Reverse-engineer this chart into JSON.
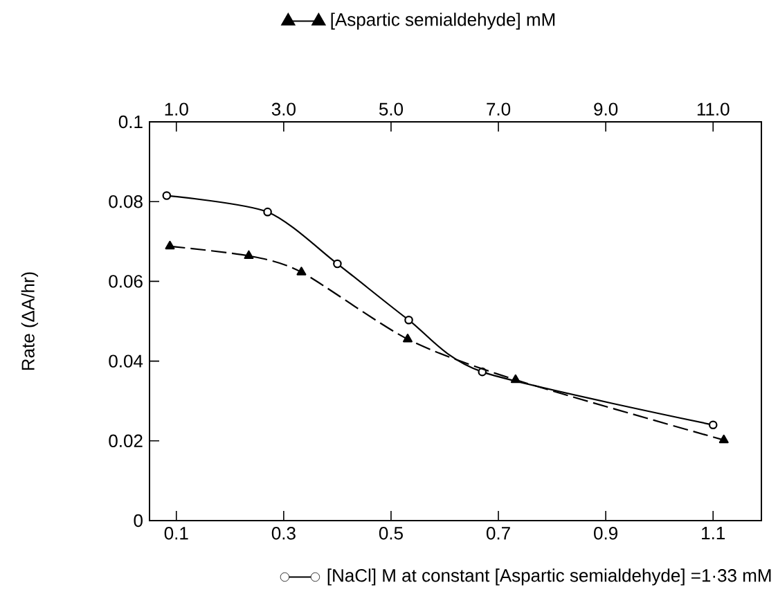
{
  "chart_data": {
    "type": "line",
    "xlabel": "[NaCl] M at constant [Aspartic semialdehyde] =1·33 mM",
    "x2label": "[Aspartic semialdehyde] mM",
    "ylabel": "Rate (ΔA/hr)",
    "xlim": [
      0.05,
      1.19
    ],
    "xticks": [
      0.1,
      0.3,
      0.5,
      0.7,
      0.9,
      1.1
    ],
    "x2lim": [
      0.5,
      11.9
    ],
    "x2ticks": [
      {
        "value": 1,
        "label": "1.0"
      },
      {
        "value": 3,
        "label": "3.0"
      },
      {
        "value": 5,
        "label": "5.0"
      },
      {
        "value": 7,
        "label": "7.0"
      },
      {
        "value": 9,
        "label": "9.0"
      },
      {
        "value": 11,
        "label": "11.0"
      }
    ],
    "ylim": [
      0,
      0.1
    ],
    "yticks": [
      0,
      0.02,
      0.04,
      0.06,
      0.08,
      0.1
    ],
    "grid": false,
    "series": [
      {
        "color": "#000000",
        "marker": "circle",
        "line_style": "solid",
        "x": [
          0.082,
          0.27,
          0.4,
          0.533,
          0.67,
          1.1
        ],
        "values": [
          0.0815,
          0.0774,
          0.0644,
          0.0503,
          0.0373,
          0.024
        ]
      },
      {
        "axis": "x2",
        "color": "#000000",
        "marker": "triangle",
        "line_style": "dashed",
        "x": [
          0.88,
          2.35,
          3.33,
          5.31,
          7.32,
          11.2
        ],
        "values": [
          0.0688,
          0.0664,
          0.0623,
          0.0455,
          0.0353,
          0.0202
        ]
      }
    ]
  }
}
